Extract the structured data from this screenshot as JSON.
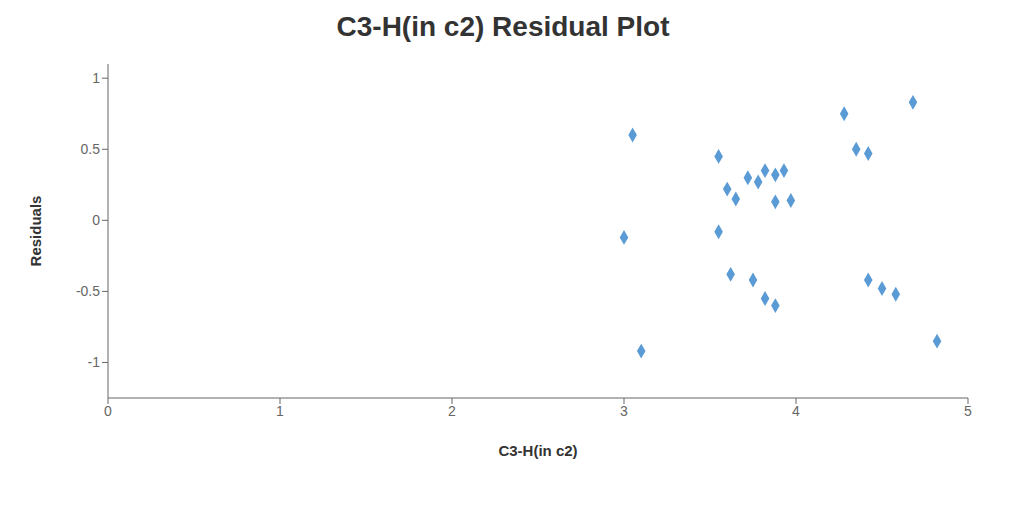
{
  "chart_data": {
    "type": "scatter",
    "title": "C3-H(in c2)  Residual Plot",
    "xlabel": "C3-H(in c2)",
    "ylabel": "Residuals",
    "x": [
      3.0,
      3.05,
      3.55,
      3.6,
      3.65,
      3.72,
      3.78,
      3.82,
      3.88,
      3.88,
      3.93,
      3.97,
      3.55,
      3.62,
      3.75,
      3.82,
      3.88,
      4.28,
      4.35,
      4.42,
      4.42,
      4.5,
      4.58,
      4.68,
      3.1,
      4.82
    ],
    "y": [
      -0.12,
      0.6,
      0.45,
      0.22,
      0.15,
      0.3,
      0.27,
      0.35,
      0.32,
      0.13,
      0.35,
      0.14,
      -0.08,
      -0.38,
      -0.42,
      -0.55,
      -0.6,
      0.75,
      0.5,
      0.47,
      -0.42,
      -0.48,
      -0.52,
      0.83,
      -0.92,
      -0.85
    ],
    "color": "#5B9BD5",
    "marker": "diamond",
    "xlim": [
      0,
      5
    ],
    "ylim": [
      -1.25,
      1.1
    ],
    "xticks": [
      0,
      1,
      2,
      3,
      4,
      5
    ],
    "yticks": [
      -1,
      -0.5,
      0,
      0.5,
      1
    ],
    "grid": false
  }
}
